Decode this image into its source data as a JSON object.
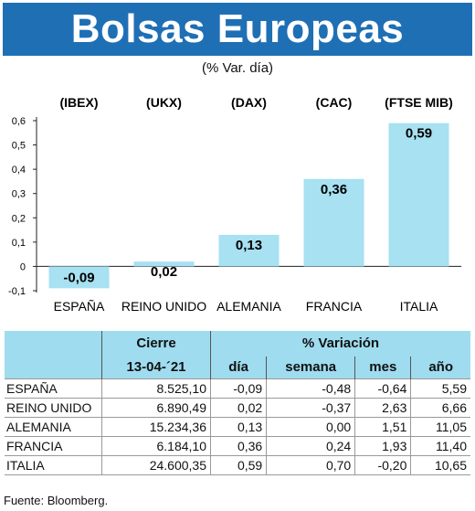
{
  "title": "Bolsas Europeas",
  "subtitle": "(% Var. día)",
  "chart_data": {
    "type": "bar",
    "categories": [
      "ESPAÑA",
      "REINO UNIDO",
      "ALEMANIA",
      "FRANCIA",
      "ITALIA"
    ],
    "indices": [
      "(IBEX)",
      "(UKX)",
      "(DAX)",
      "(CAC)",
      "(FTSE MIB)"
    ],
    "values": [
      -0.09,
      0.02,
      0.13,
      0.36,
      0.59
    ],
    "value_labels": [
      "-0,09",
      "0,02",
      "0,13",
      "0,36",
      "0,59"
    ],
    "yticks": [
      -0.1,
      0,
      0.1,
      0.2,
      0.3,
      0.4,
      0.5,
      0.6
    ],
    "ytick_labels": [
      "-0,1",
      "0",
      "0,1",
      "0,2",
      "0,3",
      "0,4",
      "0,5",
      "0,6"
    ],
    "ylim": [
      -0.1,
      0.6
    ],
    "bar_color": "#a7e1f2",
    "grid": false
  },
  "table": {
    "header_cierre": "Cierre",
    "header_variacion": "% Variación",
    "header_date": "13-04-´21",
    "columns": [
      "día",
      "semana",
      "mes",
      "año"
    ],
    "rows": [
      {
        "name": "ESPAÑA",
        "cierre": "8.525,10",
        "dia": "-0,09",
        "semana": "-0,48",
        "mes": "-0,64",
        "anio": "5,59"
      },
      {
        "name": "REINO UNIDO",
        "cierre": "6.890,49",
        "dia": "0,02",
        "semana": "-0,37",
        "mes": "2,63",
        "anio": "6,66"
      },
      {
        "name": "ALEMANIA",
        "cierre": "15.234,36",
        "dia": "0,13",
        "semana": "0,00",
        "mes": "1,51",
        "anio": "11,05"
      },
      {
        "name": "FRANCIA",
        "cierre": "6.184,10",
        "dia": "0,36",
        "semana": "0,24",
        "mes": "1,93",
        "anio": "11,40"
      },
      {
        "name": "ITALIA",
        "cierre": "24.600,35",
        "dia": "0,59",
        "semana": "0,70",
        "mes": "-0,20",
        "anio": "10,65"
      }
    ]
  },
  "source": "Fuente: Bloomberg.",
  "colors": {
    "banner": "#1f6fb5",
    "bar": "#a7e1f2",
    "table_header": "#9fdcef"
  }
}
